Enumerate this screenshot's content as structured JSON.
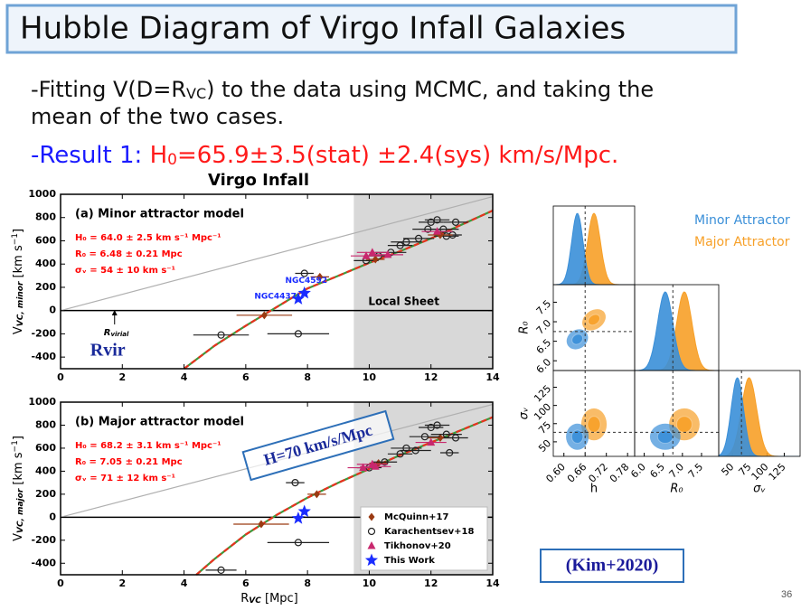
{
  "slide": {
    "title": "Hubble Diagram of Virgo Infall Galaxies",
    "bullet": [
      "-Fitting V(D=R",
      "VC",
      ") to the data using MCMC, and taking the",
      "mean of the two cases."
    ],
    "result": [
      "-Result 1: ",
      "H",
      "0",
      "=65.9±3.5(stat) ±2.4(sys) km/s/Mpc."
    ],
    "citation": "(Kim+2020)",
    "page": "36"
  },
  "chart_data": [
    {
      "type": "scatter",
      "title": "Virgo Infall",
      "ylabel": [
        "V",
        "VC, minor",
        " [km s",
        "−1",
        "]"
      ],
      "xlim": [
        0,
        14
      ],
      "xticks": [
        0,
        2,
        4,
        6,
        8,
        10,
        12,
        14
      ],
      "ylim": [
        -500,
        1000
      ],
      "yticks": [
        -400,
        -200,
        0,
        200,
        400,
        600,
        800,
        1000
      ],
      "shade": [
        9.5,
        14
      ],
      "shade_label": "Local Sheet",
      "hline": 0,
      "annotations": [
        {
          "text": "(a) Minor attractor model",
          "color": "#000000"
        },
        {
          "text": "H₀ = 64.0 ± 2.5 km s⁻¹ Mpc⁻¹",
          "color": "#ff0000"
        },
        {
          "text": "R₀ = 6.48 ± 0.21 Mpc",
          "color": "#ff0000"
        },
        {
          "text": "σᵥ = 54 ± 10 km s⁻¹",
          "color": "#ff0000"
        }
      ],
      "rvir": {
        "x": 1.75,
        "label": "R",
        "sub": "virial",
        "text": "Rvir"
      },
      "lines": [
        {
          "color": "#b0b0b0",
          "x": [
            0,
            14
          ],
          "values": [
            0,
            980
          ]
        },
        {
          "color": "#e8321e",
          "dash_color": "#3c9a3c",
          "x": [
            4,
            5,
            6,
            7,
            8,
            9,
            10,
            11,
            12,
            13,
            14
          ],
          "values": [
            -500,
            -300,
            -130,
            30,
            190,
            300,
            410,
            510,
            620,
            740,
            860
          ]
        }
      ],
      "series": [
        {
          "marker": "circle",
          "color": "#222222",
          "x": [
            5.2,
            7.7,
            7.9,
            9.9,
            10.3,
            10.7,
            11.0,
            11.2,
            11.6,
            11.9,
            12.0,
            12.2,
            12.4,
            12.5,
            12.7,
            12.8
          ],
          "values": [
            -210,
            -200,
            320,
            430,
            470,
            500,
            560,
            590,
            620,
            700,
            760,
            780,
            700,
            640,
            650,
            760
          ],
          "xerr": [
            0.9,
            1.0,
            0.3,
            0.4,
            0.4,
            0.5,
            0.4,
            0.5,
            0.5,
            0.5,
            0.4,
            0.4,
            0.5,
            0.4,
            0.3,
            0.4
          ]
        },
        {
          "marker": "diamond",
          "color": "#9a3a12",
          "x": [
            6.6,
            8.4,
            10.2,
            12.3
          ],
          "values": [
            -40,
            290,
            440,
            650
          ],
          "xerr": [
            0.9,
            0.3,
            0.3,
            0.4
          ]
        },
        {
          "marker": "triangle",
          "color": "#c8286e",
          "x": [
            9.9,
            10.1,
            10.6,
            12.2
          ],
          "values": [
            470,
            500,
            480,
            680
          ],
          "xerr": [
            0.5,
            0.5,
            0.5,
            0.5
          ]
        },
        {
          "marker": "star",
          "color": "#1a2cff",
          "x": [
            7.7,
            7.9
          ],
          "values": [
            100,
            150
          ],
          "point_labels": [
            "NGC4437",
            "NGC4592"
          ]
        }
      ]
    },
    {
      "type": "scatter",
      "ylabel": [
        "V",
        "VC, major",
        " [km s",
        "−1",
        "]"
      ],
      "xlabel": [
        "R",
        "VC",
        " [Mpc]"
      ],
      "xlim": [
        0,
        14
      ],
      "xticks": [
        0,
        2,
        4,
        6,
        8,
        10,
        12,
        14
      ],
      "ylim": [
        -500,
        1000
      ],
      "yticks": [
        -400,
        -200,
        0,
        200,
        400,
        600,
        800,
        1000
      ],
      "shade": [
        9.5,
        14
      ],
      "hline": 0,
      "annotations": [
        {
          "text": "(b) Major attractor model",
          "color": "#000000"
        },
        {
          "text": "H₀ = 68.2 ± 3.1 km s⁻¹ Mpc⁻¹",
          "color": "#ff0000"
        },
        {
          "text": "R₀ = 7.05 ± 0.21 Mpc",
          "color": "#ff0000"
        },
        {
          "text": "σᵥ = 71 ± 12 km s⁻¹",
          "color": "#ff0000"
        }
      ],
      "box_annotation": "H=70 km/s/Mpc",
      "legend": "lower right",
      "lines": [
        {
          "color": "#b0b0b0",
          "x": [
            0,
            14
          ],
          "values": [
            0,
            980
          ]
        },
        {
          "color": "#e8321e",
          "dash_color": "#3c9a3c",
          "x": [
            4.4,
            5,
            6,
            7,
            8,
            9,
            10,
            11,
            12,
            13,
            14
          ],
          "values": [
            -500,
            -360,
            -150,
            20,
            170,
            300,
            420,
            540,
            650,
            760,
            870
          ]
        }
      ],
      "series": [
        {
          "name": "McQuinn+17",
          "marker": "diamond",
          "color": "#9a3a12",
          "x": [
            6.5,
            8.3,
            10.3,
            12.3
          ],
          "values": [
            -60,
            200,
            470,
            690
          ],
          "xerr": [
            0.9,
            0.3,
            0.3,
            0.4
          ]
        },
        {
          "name": "Karachentsev+18",
          "marker": "circle",
          "color": "#222222",
          "x": [
            5.2,
            7.7,
            7.6,
            10.0,
            10.5,
            11.0,
            11.2,
            11.5,
            11.8,
            12.0,
            12.2,
            12.5,
            12.6,
            12.8
          ],
          "values": [
            -460,
            -220,
            300,
            430,
            480,
            550,
            600,
            580,
            700,
            780,
            800,
            720,
            560,
            690
          ],
          "xerr": [
            0.5,
            1.0,
            0.3,
            0.4,
            0.4,
            0.4,
            0.5,
            0.5,
            0.5,
            0.4,
            0.4,
            0.5,
            0.3,
            0.4
          ]
        },
        {
          "name": "Tikhonov+20",
          "marker": "triangle",
          "color": "#c8286e",
          "x": [
            9.8,
            10.1,
            10.2,
            12.0
          ],
          "values": [
            430,
            460,
            440,
            650
          ],
          "xerr": [
            0.5,
            0.5,
            0.5,
            0.5
          ]
        },
        {
          "name": "This Work",
          "marker": "star",
          "color": "#1a2cff",
          "x": [
            7.7,
            7.9
          ],
          "values": [
            -10,
            50
          ]
        }
      ]
    },
    {
      "type": "corner",
      "params": [
        {
          "label": "h",
          "lim": [
            0.57,
            0.8
          ],
          "ticks": [
            {
              "value": 0.6,
              "label": "0.60"
            },
            0.66,
            0.72,
            0.78
          ]
        },
        {
          "label": "R₀",
          "lim": [
            5.75,
            7.95
          ],
          "ticks": [
            {
              "value": 6,
              "label": "6.0"
            },
            6.5,
            {
              "value": 7,
              "label": "7.0"
            },
            7.5
          ]
        },
        {
          "label": "σᵥ",
          "lim": [
            30,
            148
          ],
          "ticks": [
            50,
            75,
            100,
            125
          ]
        }
      ],
      "reference": [
        0.66,
        6.75,
        63
      ],
      "series": [
        {
          "name": "Major Attractor",
          "color": "#f7a028",
          "mean": [
            0.685,
            7.05,
            74
          ],
          "sd": [
            0.018,
            0.2,
            11
          ]
        },
        {
          "name": "Minor Attractor",
          "color": "#3a8fd8",
          "mean": [
            0.638,
            6.55,
            57
          ],
          "sd": [
            0.016,
            0.2,
            9
          ]
        }
      ]
    }
  ]
}
